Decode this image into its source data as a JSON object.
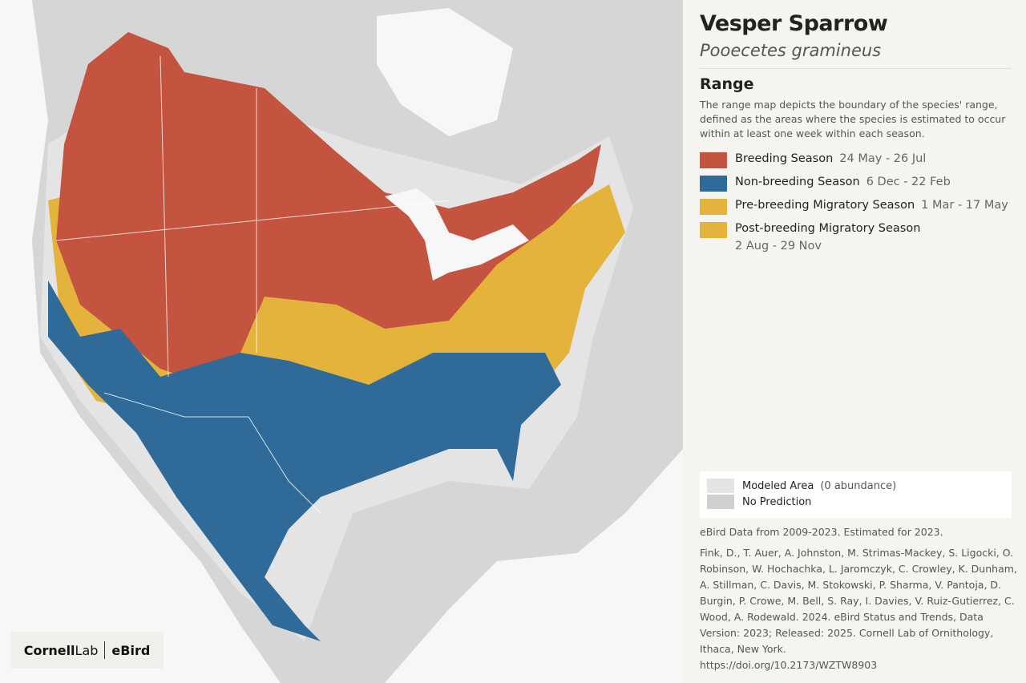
{
  "header": {
    "title": "Vesper Sparrow",
    "subtitle": "Pooecetes gramineus"
  },
  "range": {
    "heading": "Range",
    "description": "The range map depicts the boundary of the species' range, defined as the areas where the species is estimated to occur within at least one week within each season.",
    "legend": [
      {
        "name": "Breeding Season",
        "dates": "24 May - 26 Jul",
        "color": "#c4533f"
      },
      {
        "name": "Non-breeding Season",
        "dates": "6 Dec - 22 Feb",
        "color": "#2f6a98"
      },
      {
        "name": "Pre-breeding Migratory Season",
        "dates": "1 Mar - 17 May",
        "color": "#e3b33c"
      },
      {
        "name": "Post-breeding Migratory Season",
        "dates": "2 Aug - 29 Nov",
        "color": "#e3b33c"
      }
    ]
  },
  "coverage": [
    {
      "name": "Modeled Area",
      "note": "(0 abundance)",
      "color": "#e4e4e4"
    },
    {
      "name": "No Prediction",
      "color": "#cfcfcf"
    }
  ],
  "data_note": "eBird Data from 2009-2023. Estimated for 2023.",
  "citation": "Fink, D., T. Auer, A. Johnston, M. Strimas-Mackey, S. Ligocki, O. Robinson, W. Hochachka, L. Jaromczyk, C. Crowley, K. Dunham, A. Stillman, C. Davis, M. Stokowski, P. Sharma, V. Pantoja, D. Burgin, P. Crowe, M. Bell, S. Ray, I. Davies, V. Ruiz-Gutierrez, C. Wood, A. Rodewald. 2024. eBird Status and Trends, Data Version: 2023; Released: 2025. Cornell Lab of Ornithology, Ithaca, New York.",
  "doi": "https://doi.org/10.2173/WZTW8903",
  "logo": {
    "cornell": "Cornell",
    "lab": "Lab",
    "ebird": "eBird"
  }
}
